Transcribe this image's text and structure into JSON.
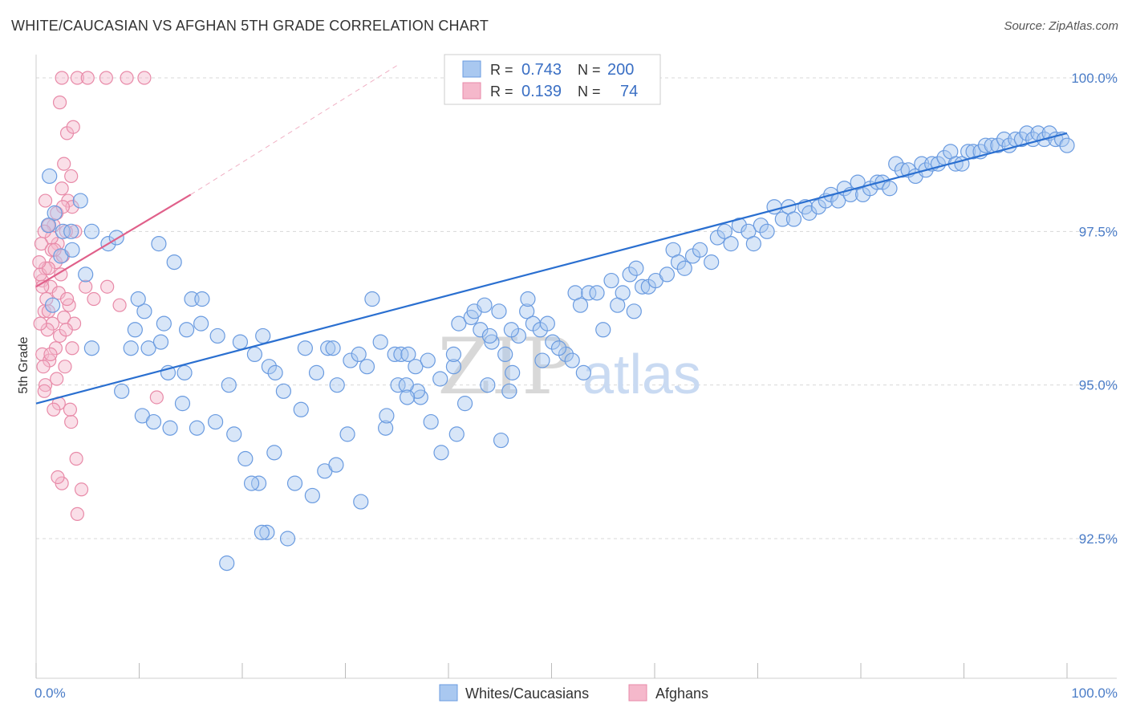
{
  "title": "WHITE/CAUCASIAN VS AFGHAN 5TH GRADE CORRELATION CHART",
  "source": "Source: ZipAtlas.com",
  "watermark": {
    "zip": "ZIP",
    "atlas": "atlas"
  },
  "legend": {
    "rows": [
      {
        "r_label": "R =",
        "r_value": "0.743",
        "n_label": "N =",
        "n_value": "200"
      },
      {
        "r_label": "R =",
        "r_value": "0.139",
        "n_label": "N =",
        "n_value": "74"
      }
    ]
  },
  "colors": {
    "blue_fill": "#a9c8f0",
    "blue_stroke": "#6a9be0",
    "blue_line": "#2a6fd0",
    "pink_fill": "#f5b8cb",
    "pink_stroke": "#e88aa8",
    "pink_line": "#e0608a",
    "grid": "#d8d8d8",
    "tick_text": "#4a7cc7"
  },
  "chart_data": {
    "type": "scatter",
    "title": "WHITE/CAUCASIAN VS AFGHAN 5TH GRADE CORRELATION CHART",
    "xlabel": "",
    "ylabel": "5th Grade",
    "xlim": [
      0,
      100
    ],
    "ylim": [
      90.2,
      100.5
    ],
    "x_tick_labels": [
      "0.0%",
      "100.0%"
    ],
    "y_ticks": [
      {
        "value": 100.0,
        "label": "100.0%"
      },
      {
        "value": 97.5,
        "label": "97.5%"
      },
      {
        "value": 95.0,
        "label": "95.0%"
      },
      {
        "value": 92.5,
        "label": "92.5%"
      }
    ],
    "series": [
      {
        "name": "Whites/Caucasians",
        "R": 0.743,
        "N": 200,
        "trend": {
          "x0": 0,
          "y0": 94.7,
          "x1": 100,
          "y1": 99.1
        },
        "points": [
          [
            1.3,
            98.4
          ],
          [
            1.8,
            97.8
          ],
          [
            1.2,
            97.6
          ],
          [
            2.6,
            97.5
          ],
          [
            3.4,
            97.5
          ],
          [
            2.4,
            97.1
          ],
          [
            3.5,
            97.2
          ],
          [
            4.3,
            98.0
          ],
          [
            5.4,
            97.5
          ],
          [
            7.0,
            97.3
          ],
          [
            7.8,
            97.4
          ],
          [
            11.9,
            97.3
          ],
          [
            4.8,
            96.8
          ],
          [
            1.6,
            96.3
          ],
          [
            15.1,
            96.4
          ],
          [
            16.1,
            96.4
          ],
          [
            10.5,
            96.2
          ],
          [
            12.4,
            96.0
          ],
          [
            9.6,
            95.9
          ],
          [
            16.0,
            96.0
          ],
          [
            17.6,
            95.8
          ],
          [
            5.4,
            95.6
          ],
          [
            9.2,
            95.6
          ],
          [
            12.8,
            95.2
          ],
          [
            14.4,
            95.2
          ],
          [
            21.2,
            95.5
          ],
          [
            22.6,
            95.3
          ],
          [
            23.2,
            95.2
          ],
          [
            26.1,
            95.6
          ],
          [
            28.3,
            95.6
          ],
          [
            32.6,
            96.4
          ],
          [
            28.8,
            95.6
          ],
          [
            30.5,
            95.4
          ],
          [
            31.3,
            95.5
          ],
          [
            32.1,
            95.3
          ],
          [
            29.2,
            95.0
          ],
          [
            8.3,
            94.9
          ],
          [
            14.2,
            94.7
          ],
          [
            10.3,
            94.5
          ],
          [
            11.4,
            94.4
          ],
          [
            13.0,
            94.3
          ],
          [
            15.6,
            94.3
          ],
          [
            17.4,
            94.4
          ],
          [
            19.2,
            94.2
          ],
          [
            20.3,
            93.8
          ],
          [
            21.6,
            93.4
          ],
          [
            20.9,
            93.4
          ],
          [
            22.4,
            92.6
          ],
          [
            23.1,
            93.9
          ],
          [
            25.1,
            93.4
          ],
          [
            26.8,
            93.2
          ],
          [
            24.4,
            92.5
          ],
          [
            21.9,
            92.6
          ],
          [
            18.5,
            92.1
          ],
          [
            28.0,
            93.6
          ],
          [
            29.1,
            93.7
          ],
          [
            30.2,
            94.2
          ],
          [
            31.5,
            93.1
          ],
          [
            33.9,
            94.3
          ],
          [
            34.8,
            95.5
          ],
          [
            35.4,
            95.5
          ],
          [
            36.1,
            95.5
          ],
          [
            37.3,
            94.8
          ],
          [
            38.3,
            94.4
          ],
          [
            37.0,
            94.9
          ],
          [
            36.8,
            95.3
          ],
          [
            33.4,
            95.7
          ],
          [
            35.1,
            95.0
          ],
          [
            35.9,
            95.0
          ],
          [
            38.0,
            95.4
          ],
          [
            40.5,
            95.3
          ],
          [
            39.2,
            95.1
          ],
          [
            40.5,
            95.5
          ],
          [
            41.0,
            96.0
          ],
          [
            42.2,
            96.1
          ],
          [
            43.1,
            95.9
          ],
          [
            44.2,
            95.7
          ],
          [
            42.5,
            96.2
          ],
          [
            45.9,
            94.9
          ],
          [
            46.2,
            95.2
          ],
          [
            45.5,
            95.5
          ],
          [
            46.8,
            95.8
          ],
          [
            47.6,
            96.2
          ],
          [
            48.2,
            96.0
          ],
          [
            49.1,
            95.4
          ],
          [
            47.7,
            96.4
          ],
          [
            44.9,
            96.2
          ],
          [
            43.5,
            96.3
          ],
          [
            44.0,
            95.8
          ],
          [
            46.1,
            95.9
          ],
          [
            48.9,
            95.9
          ],
          [
            49.6,
            96.0
          ],
          [
            50.1,
            95.7
          ],
          [
            51.4,
            95.5
          ],
          [
            50.7,
            95.6
          ],
          [
            52.3,
            96.5
          ],
          [
            52.8,
            96.3
          ],
          [
            53.6,
            96.5
          ],
          [
            54.4,
            96.5
          ],
          [
            55.8,
            96.7
          ],
          [
            56.9,
            96.5
          ],
          [
            57.6,
            96.8
          ],
          [
            58.2,
            96.9
          ],
          [
            58.8,
            96.6
          ],
          [
            59.4,
            96.6
          ],
          [
            60.1,
            96.7
          ],
          [
            61.2,
            96.8
          ],
          [
            61.8,
            97.2
          ],
          [
            62.3,
            97.0
          ],
          [
            62.9,
            96.9
          ],
          [
            63.7,
            97.1
          ],
          [
            64.4,
            97.2
          ],
          [
            65.5,
            97.0
          ],
          [
            66.1,
            97.4
          ],
          [
            66.8,
            97.5
          ],
          [
            67.4,
            97.3
          ],
          [
            68.2,
            97.6
          ],
          [
            69.1,
            97.5
          ],
          [
            69.6,
            97.3
          ],
          [
            70.3,
            97.6
          ],
          [
            70.9,
            97.5
          ],
          [
            71.6,
            97.9
          ],
          [
            72.4,
            97.7
          ],
          [
            73.0,
            97.9
          ],
          [
            73.5,
            97.7
          ],
          [
            74.6,
            97.9
          ],
          [
            75.0,
            97.8
          ],
          [
            75.9,
            97.9
          ],
          [
            76.6,
            98.0
          ],
          [
            77.1,
            98.1
          ],
          [
            77.8,
            98.0
          ],
          [
            78.4,
            98.2
          ],
          [
            79.0,
            98.1
          ],
          [
            79.7,
            98.3
          ],
          [
            80.2,
            98.1
          ],
          [
            80.9,
            98.2
          ],
          [
            81.6,
            98.3
          ],
          [
            82.1,
            98.3
          ],
          [
            82.8,
            98.2
          ],
          [
            83.4,
            98.6
          ],
          [
            84.0,
            98.5
          ],
          [
            84.6,
            98.5
          ],
          [
            85.3,
            98.4
          ],
          [
            85.9,
            98.6
          ],
          [
            86.3,
            98.5
          ],
          [
            86.9,
            98.6
          ],
          [
            87.5,
            98.6
          ],
          [
            88.1,
            98.7
          ],
          [
            88.7,
            98.8
          ],
          [
            89.2,
            98.6
          ],
          [
            89.8,
            98.6
          ],
          [
            90.4,
            98.8
          ],
          [
            90.9,
            98.8
          ],
          [
            91.6,
            98.8
          ],
          [
            92.1,
            98.9
          ],
          [
            92.7,
            98.9
          ],
          [
            93.3,
            98.9
          ],
          [
            93.9,
            99.0
          ],
          [
            94.4,
            98.9
          ],
          [
            95.0,
            99.0
          ],
          [
            95.6,
            99.0
          ],
          [
            96.1,
            99.1
          ],
          [
            96.7,
            99.0
          ],
          [
            97.2,
            99.1
          ],
          [
            97.8,
            99.0
          ],
          [
            98.3,
            99.1
          ],
          [
            98.9,
            99.0
          ],
          [
            99.5,
            99.0
          ],
          [
            100.0,
            98.9
          ],
          [
            14.6,
            95.9
          ],
          [
            10.9,
            95.6
          ],
          [
            12.1,
            95.7
          ],
          [
            9.9,
            96.4
          ],
          [
            13.4,
            97.0
          ],
          [
            18.7,
            95.0
          ],
          [
            19.8,
            95.7
          ],
          [
            22.0,
            95.8
          ],
          [
            24.0,
            94.9
          ],
          [
            25.7,
            94.6
          ],
          [
            27.2,
            95.2
          ],
          [
            34.0,
            94.5
          ],
          [
            36.0,
            94.8
          ],
          [
            39.3,
            93.9
          ],
          [
            40.8,
            94.2
          ],
          [
            41.6,
            94.7
          ],
          [
            43.8,
            95.0
          ],
          [
            45.1,
            94.1
          ],
          [
            52.0,
            95.4
          ],
          [
            53.1,
            95.2
          ],
          [
            55.0,
            95.9
          ],
          [
            56.4,
            96.3
          ],
          [
            58.0,
            96.2
          ]
        ]
      },
      {
        "name": "Afghans",
        "R": 0.139,
        "N": 74,
        "trend": {
          "x0": 0,
          "y0": 96.6,
          "x1": 15,
          "y1": 98.1
        },
        "trend_dashed": {
          "x0": 15,
          "y0": 98.1,
          "x1": 35,
          "y1": 100.2
        },
        "points": [
          [
            2.5,
            100.0
          ],
          [
            4.0,
            100.0
          ],
          [
            5.0,
            100.0
          ],
          [
            6.8,
            100.0
          ],
          [
            8.8,
            100.0
          ],
          [
            10.5,
            100.0
          ],
          [
            2.3,
            99.6
          ],
          [
            3.0,
            99.1
          ],
          [
            3.6,
            99.2
          ],
          [
            2.7,
            98.6
          ],
          [
            3.4,
            98.4
          ],
          [
            2.5,
            98.2
          ],
          [
            3.1,
            98.0
          ],
          [
            3.5,
            97.9
          ],
          [
            2.0,
            97.8
          ],
          [
            1.7,
            97.6
          ],
          [
            3.8,
            97.5
          ],
          [
            2.9,
            97.5
          ],
          [
            2.1,
            97.3
          ],
          [
            1.2,
            97.6
          ],
          [
            1.5,
            97.4
          ],
          [
            0.8,
            97.5
          ],
          [
            0.5,
            97.3
          ],
          [
            1.9,
            97.0
          ],
          [
            2.6,
            97.1
          ],
          [
            0.9,
            96.9
          ],
          [
            0.6,
            96.7
          ],
          [
            1.4,
            96.6
          ],
          [
            2.2,
            96.5
          ],
          [
            1.0,
            96.4
          ],
          [
            0.4,
            96.8
          ],
          [
            3.2,
            96.3
          ],
          [
            2.7,
            96.1
          ],
          [
            0.8,
            96.2
          ],
          [
            1.6,
            96.0
          ],
          [
            1.1,
            95.9
          ],
          [
            3.7,
            96.0
          ],
          [
            2.3,
            95.8
          ],
          [
            1.9,
            95.6
          ],
          [
            0.6,
            95.5
          ],
          [
            1.3,
            95.4
          ],
          [
            2.8,
            95.3
          ],
          [
            3.5,
            95.6
          ],
          [
            2.0,
            95.1
          ],
          [
            0.9,
            95.0
          ],
          [
            2.2,
            94.7
          ],
          [
            1.7,
            94.6
          ],
          [
            3.4,
            94.4
          ],
          [
            3.9,
            93.8
          ],
          [
            2.5,
            93.4
          ],
          [
            4.4,
            93.3
          ],
          [
            4.0,
            92.9
          ],
          [
            4.8,
            96.6
          ],
          [
            6.9,
            96.6
          ],
          [
            5.6,
            96.4
          ],
          [
            11.7,
            94.8
          ],
          [
            8.1,
            96.3
          ],
          [
            1.2,
            96.9
          ],
          [
            0.4,
            96.0
          ],
          [
            0.7,
            95.3
          ],
          [
            2.4,
            96.8
          ],
          [
            3.0,
            96.4
          ],
          [
            1.5,
            97.2
          ],
          [
            2.6,
            97.9
          ],
          [
            0.9,
            98.0
          ],
          [
            1.8,
            97.2
          ],
          [
            0.3,
            97.0
          ],
          [
            1.2,
            96.2
          ],
          [
            0.6,
            96.6
          ],
          [
            2.9,
            95.9
          ],
          [
            1.4,
            95.5
          ],
          [
            0.8,
            94.9
          ],
          [
            3.3,
            94.6
          ],
          [
            2.1,
            93.5
          ]
        ]
      }
    ]
  },
  "bottom_legend": [
    "Whites/Caucasians",
    "Afghans"
  ]
}
